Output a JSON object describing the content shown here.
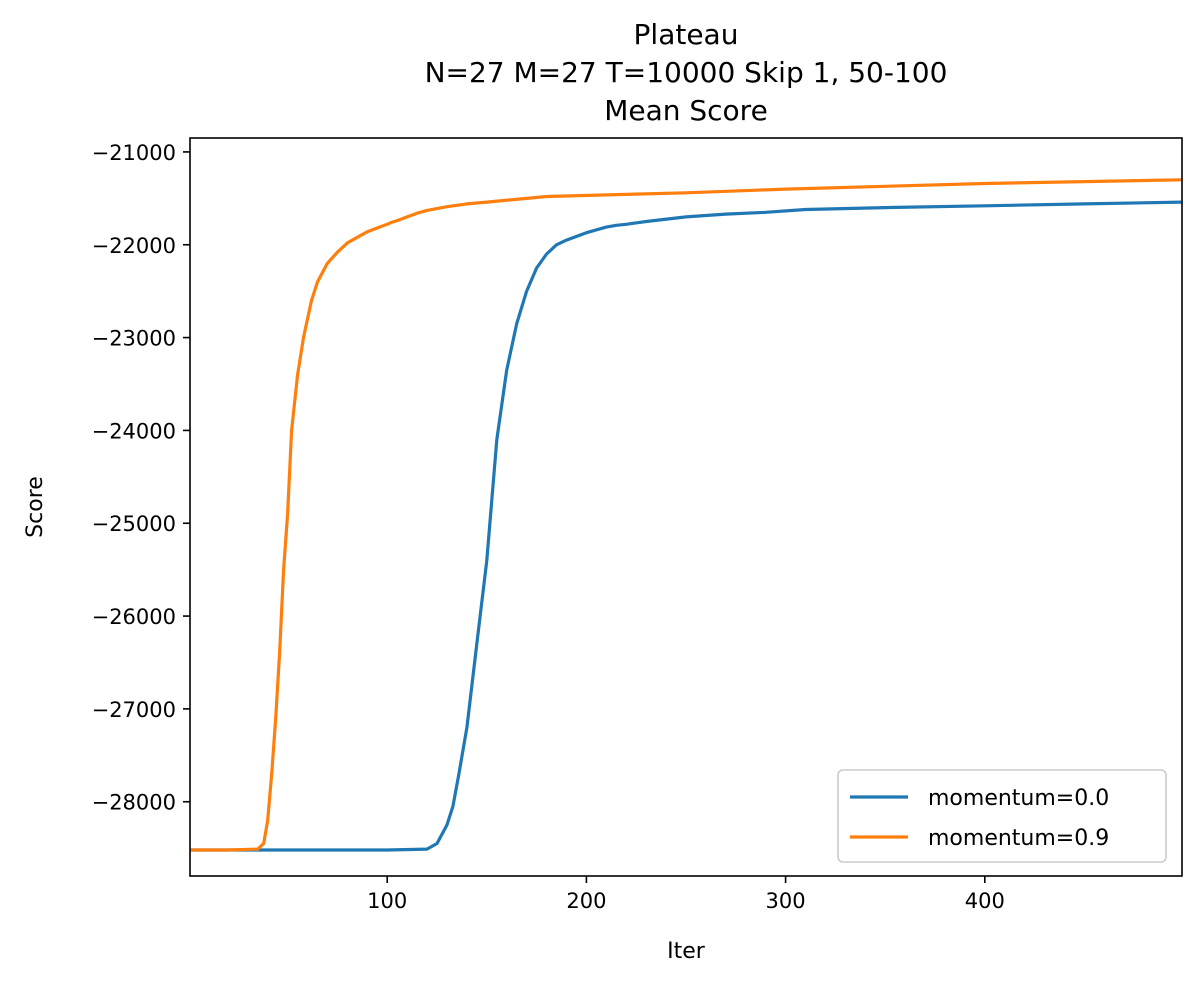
{
  "chart_data": {
    "type": "line",
    "title_lines": [
      "Plateau",
      "N=27 M=27 T=10000 Skip 1, 50-100",
      "Mean Score"
    ],
    "xlabel": "Iter",
    "ylabel": "Score",
    "xlim": [
      1,
      499
    ],
    "ylim": [
      -28800,
      -20850
    ],
    "xticks": [
      100,
      200,
      300,
      400
    ],
    "yticks": [
      -21000,
      -22000,
      -23000,
      -24000,
      -25000,
      -26000,
      -27000,
      -28000
    ],
    "xtick_labels": [
      "100",
      "200",
      "300",
      "400"
    ],
    "ytick_labels": [
      "−21000",
      "−22000",
      "−23000",
      "−24000",
      "−25000",
      "−26000",
      "−27000",
      "−28000"
    ],
    "legend_position": "lower-right",
    "grid": false,
    "series": [
      {
        "name": "momentum=0.0",
        "color": "#1f77b4",
        "x": [
          1,
          60,
          100,
          120,
          125,
          130,
          133,
          136,
          140,
          145,
          150,
          155,
          160,
          165,
          170,
          175,
          180,
          185,
          190,
          200,
          210,
          215,
          220,
          230,
          250,
          270,
          290,
          310,
          350,
          400,
          450,
          499
        ],
        "y": [
          -28520,
          -28520,
          -28520,
          -28510,
          -28450,
          -28250,
          -28050,
          -27700,
          -27200,
          -26300,
          -25400,
          -24100,
          -23350,
          -22850,
          -22500,
          -22250,
          -22100,
          -22000,
          -21950,
          -21870,
          -21810,
          -21790,
          -21780,
          -21750,
          -21700,
          -21670,
          -21650,
          -21620,
          -21600,
          -21580,
          -21560,
          -21540
        ]
      },
      {
        "name": "momentum=0.9",
        "color": "#ff7f0e",
        "x": [
          1,
          20,
          35,
          38,
          40,
          42,
          44,
          46,
          48,
          50,
          52,
          55,
          58,
          60,
          62,
          65,
          70,
          75,
          80,
          85,
          90,
          95,
          100,
          102,
          105,
          110,
          115,
          120,
          130,
          140,
          150,
          180,
          250,
          300,
          350,
          400,
          450,
          499
        ],
        "y": [
          -28520,
          -28520,
          -28510,
          -28450,
          -28200,
          -27700,
          -27100,
          -26400,
          -25500,
          -24900,
          -24000,
          -23400,
          -23000,
          -22800,
          -22600,
          -22400,
          -22200,
          -22080,
          -21980,
          -21920,
          -21860,
          -21820,
          -21780,
          -21760,
          -21740,
          -21700,
          -21660,
          -21630,
          -21590,
          -21560,
          -21540,
          -21480,
          -21440,
          -21400,
          -21370,
          -21340,
          -21320,
          -21300
        ]
      }
    ]
  }
}
